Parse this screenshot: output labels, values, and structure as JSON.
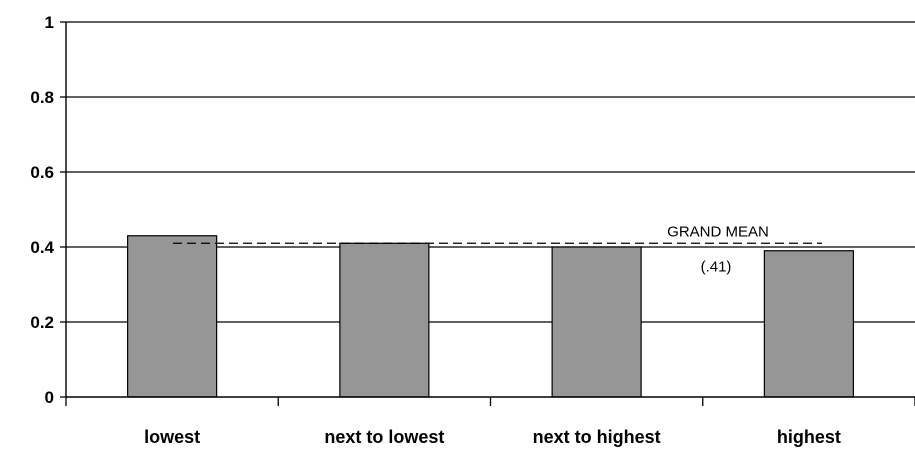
{
  "chart_data": {
    "type": "bar",
    "categories": [
      "lowest",
      "next to lowest",
      "next to highest",
      "highest"
    ],
    "values": [
      0.43,
      0.41,
      0.4,
      0.39
    ],
    "ylim": [
      0,
      1
    ],
    "yticks": [
      "0",
      "0.2",
      "0.4",
      "0.6",
      "0.8",
      "1"
    ],
    "grid": true,
    "bar_color": "#969696",
    "reference_line": {
      "value": 0.41,
      "label": "GRAND MEAN",
      "value_label": "(.41)",
      "style": "dashed"
    }
  }
}
